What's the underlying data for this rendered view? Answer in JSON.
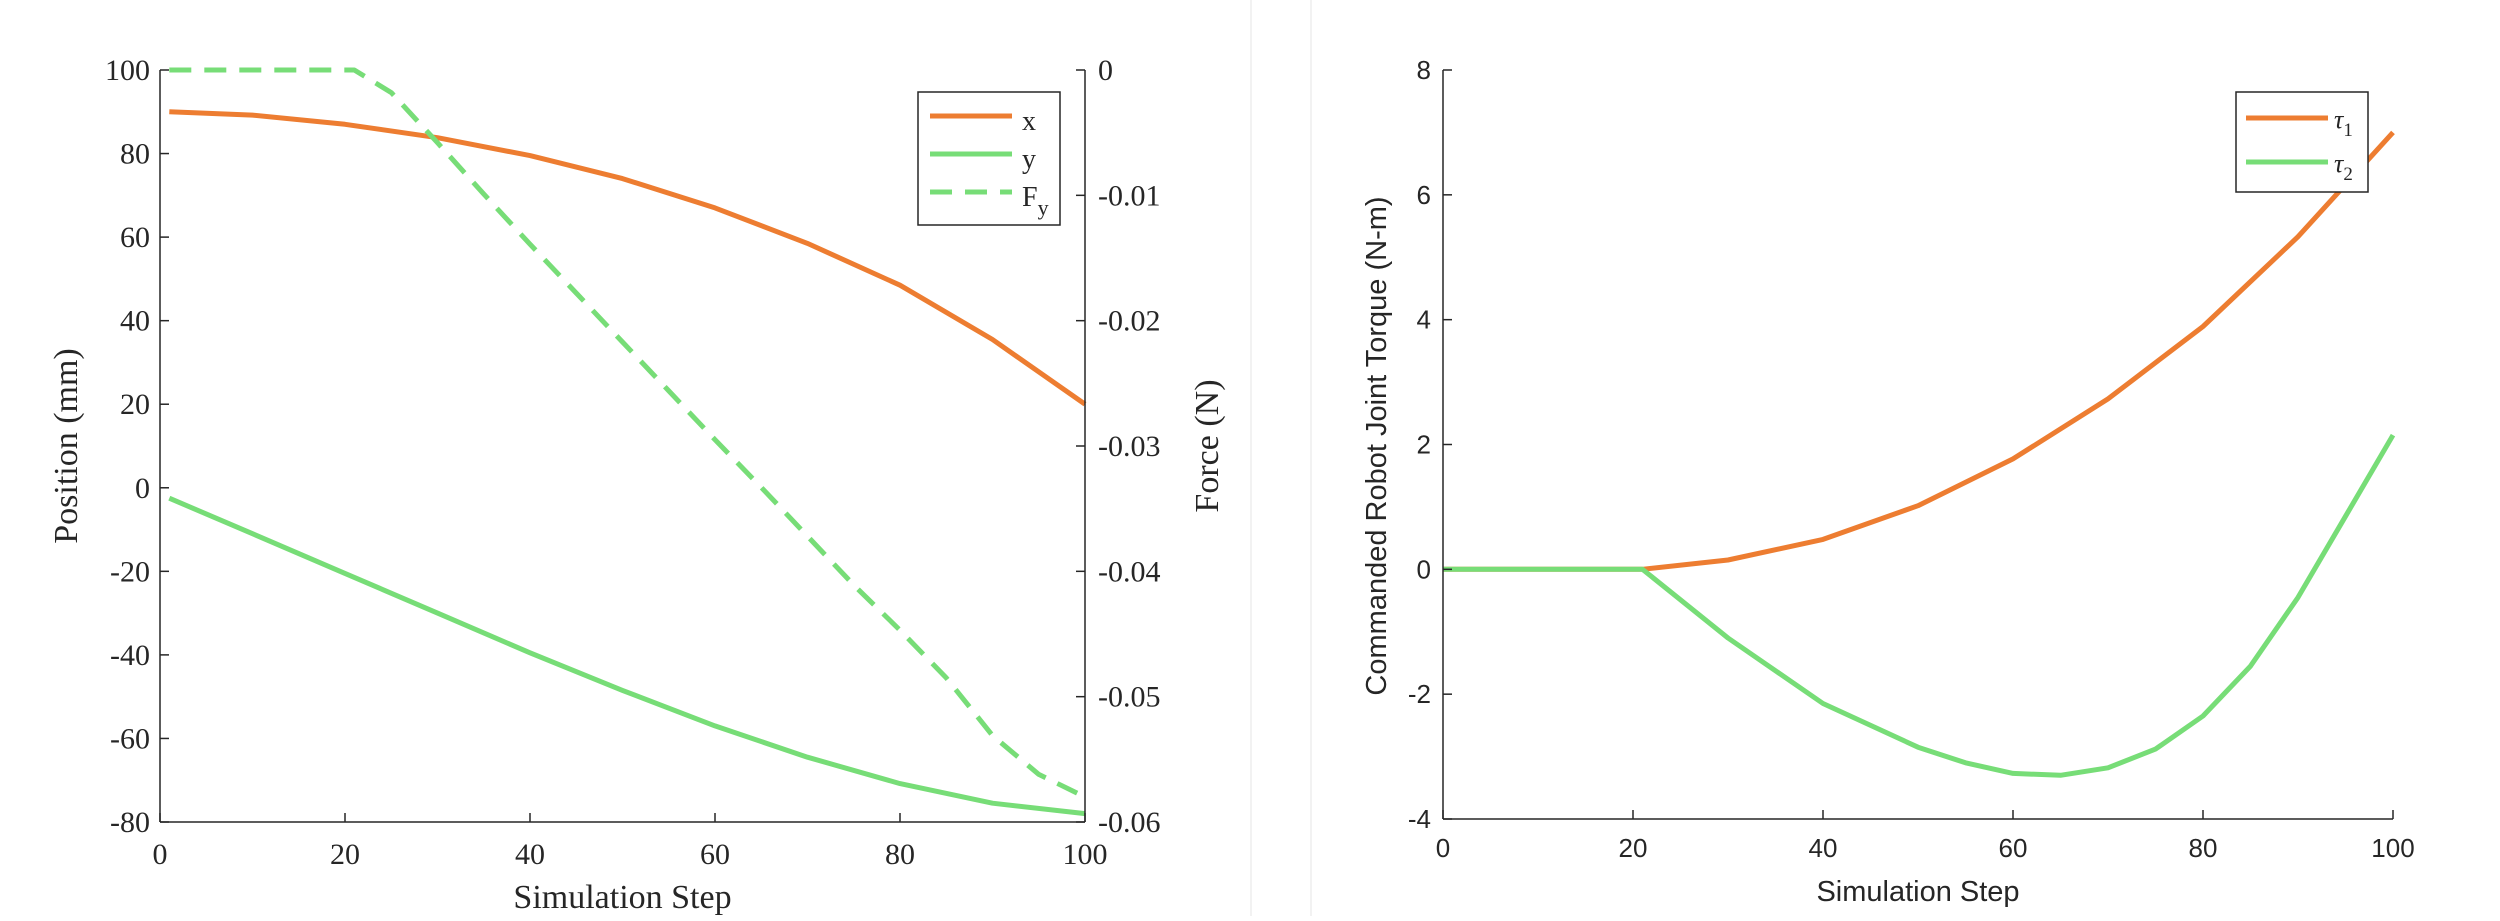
{
  "colors": {
    "x": "#ED7D31",
    "y": "#77DD77",
    "Fy": "#77DD77",
    "tau1": "#ED7D31",
    "tau2": "#77DD77"
  },
  "chart_data": [
    {
      "type": "line",
      "xlabel": "Simulation Step",
      "ylabel": "Position (mm)",
      "y2label": "Force (N)",
      "xlim": [
        0,
        100
      ],
      "ylim": [
        -80,
        100
      ],
      "y2lim": [
        -0.06,
        0
      ],
      "xticks": [
        "0",
        "20",
        "40",
        "60",
        "80",
        "100"
      ],
      "yticks": [
        "-80",
        "-60",
        "-40",
        "-20",
        "0",
        "20",
        "40",
        "60",
        "80",
        "100"
      ],
      "y2ticks": [
        "-0.06",
        "-0.05",
        "-0.04",
        "-0.03",
        "-0.02",
        "-0.01",
        "0"
      ],
      "legend_position": "top-right",
      "series": [
        {
          "name": "x",
          "axis": "left",
          "style": "solid",
          "color": "#ED7D31",
          "x": [
            1,
            10,
            20,
            30,
            40,
            50,
            60,
            70,
            80,
            90,
            100
          ],
          "y": [
            90,
            89.2,
            87,
            83.8,
            79.5,
            74,
            67,
            58.5,
            48.5,
            35.5,
            20
          ]
        },
        {
          "name": "y",
          "axis": "left",
          "style": "solid",
          "color": "#77DD77",
          "x": [
            1,
            10,
            20,
            30,
            40,
            50,
            60,
            70,
            80,
            90,
            100
          ],
          "y": [
            -2.5,
            -11,
            -20.5,
            -30,
            -39.5,
            -48.5,
            -57,
            -64.5,
            -70.8,
            -75.5,
            -78
          ]
        },
        {
          "name": "F",
          "sub": "y",
          "axis": "right",
          "style": "dashed",
          "color": "#77DD77",
          "x": [
            1,
            5,
            10,
            15,
            21,
            25,
            30,
            35,
            40,
            45,
            50,
            55,
            60,
            65,
            70,
            75,
            80,
            85,
            90,
            95,
            100
          ],
          "y": [
            0,
            0,
            0,
            0,
            0,
            -0.0018,
            -0.0058,
            -0.0099,
            -0.0139,
            -0.0178,
            -0.0217,
            -0.0256,
            -0.0295,
            -0.0333,
            -0.0372,
            -0.0411,
            -0.0447,
            -0.0485,
            -0.0531,
            -0.0562,
            -0.058
          ]
        }
      ]
    },
    {
      "type": "line",
      "xlabel": "Simulation Step",
      "ylabel": "Commanded Robot Joint Torque (N-m)",
      "xlim": [
        0,
        100
      ],
      "ylim": [
        -4,
        8
      ],
      "xticks": [
        "0",
        "20",
        "40",
        "60",
        "80",
        "100"
      ],
      "yticks": [
        "-4",
        "-2",
        "0",
        "2",
        "4",
        "6",
        "8"
      ],
      "legend_position": "top-right",
      "series": [
        {
          "name": "τ",
          "sub": "1",
          "color": "#ED7D31",
          "x": [
            0,
            10,
            21,
            30,
            40,
            50,
            60,
            70,
            80,
            90,
            100
          ],
          "y": [
            0,
            0,
            0,
            0.15,
            0.48,
            1.02,
            1.77,
            2.73,
            3.89,
            5.33,
            7
          ]
        },
        {
          "name": "τ",
          "sub": "2",
          "color": "#77DD77",
          "x": [
            0,
            10,
            21,
            30,
            40,
            50,
            55,
            60,
            65,
            70,
            75,
            80,
            85,
            90,
            95,
            100
          ],
          "y": [
            0,
            0,
            0,
            -1.1,
            -2.15,
            -2.85,
            -3.1,
            -3.27,
            -3.3,
            -3.18,
            -2.88,
            -2.35,
            -1.55,
            -0.45,
            0.85,
            2.15
          ]
        }
      ]
    }
  ]
}
